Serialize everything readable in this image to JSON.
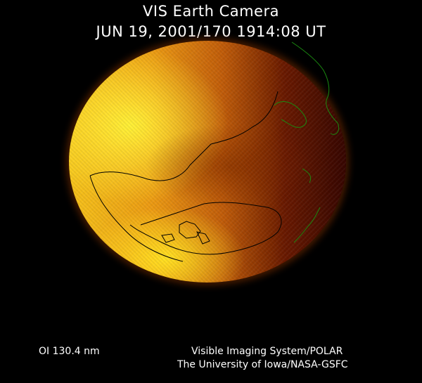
{
  "header": {
    "title": "VIS Earth Camera",
    "timestamp": "JUN 19, 2001/170 1914:08 UT"
  },
  "image": {
    "subject": "earth-disk-uv-aurora",
    "colors": {
      "bright": "#f8e020",
      "mid": "#e08a18",
      "dark": "#3a0c02",
      "coastline_day": "#000000",
      "coastline_night": "#1a8a10"
    }
  },
  "footer": {
    "band": "OI  130.4 nm",
    "instrument": "Visible Imaging System/POLAR",
    "organization": "The University of Iowa/NASA-GSFC"
  }
}
